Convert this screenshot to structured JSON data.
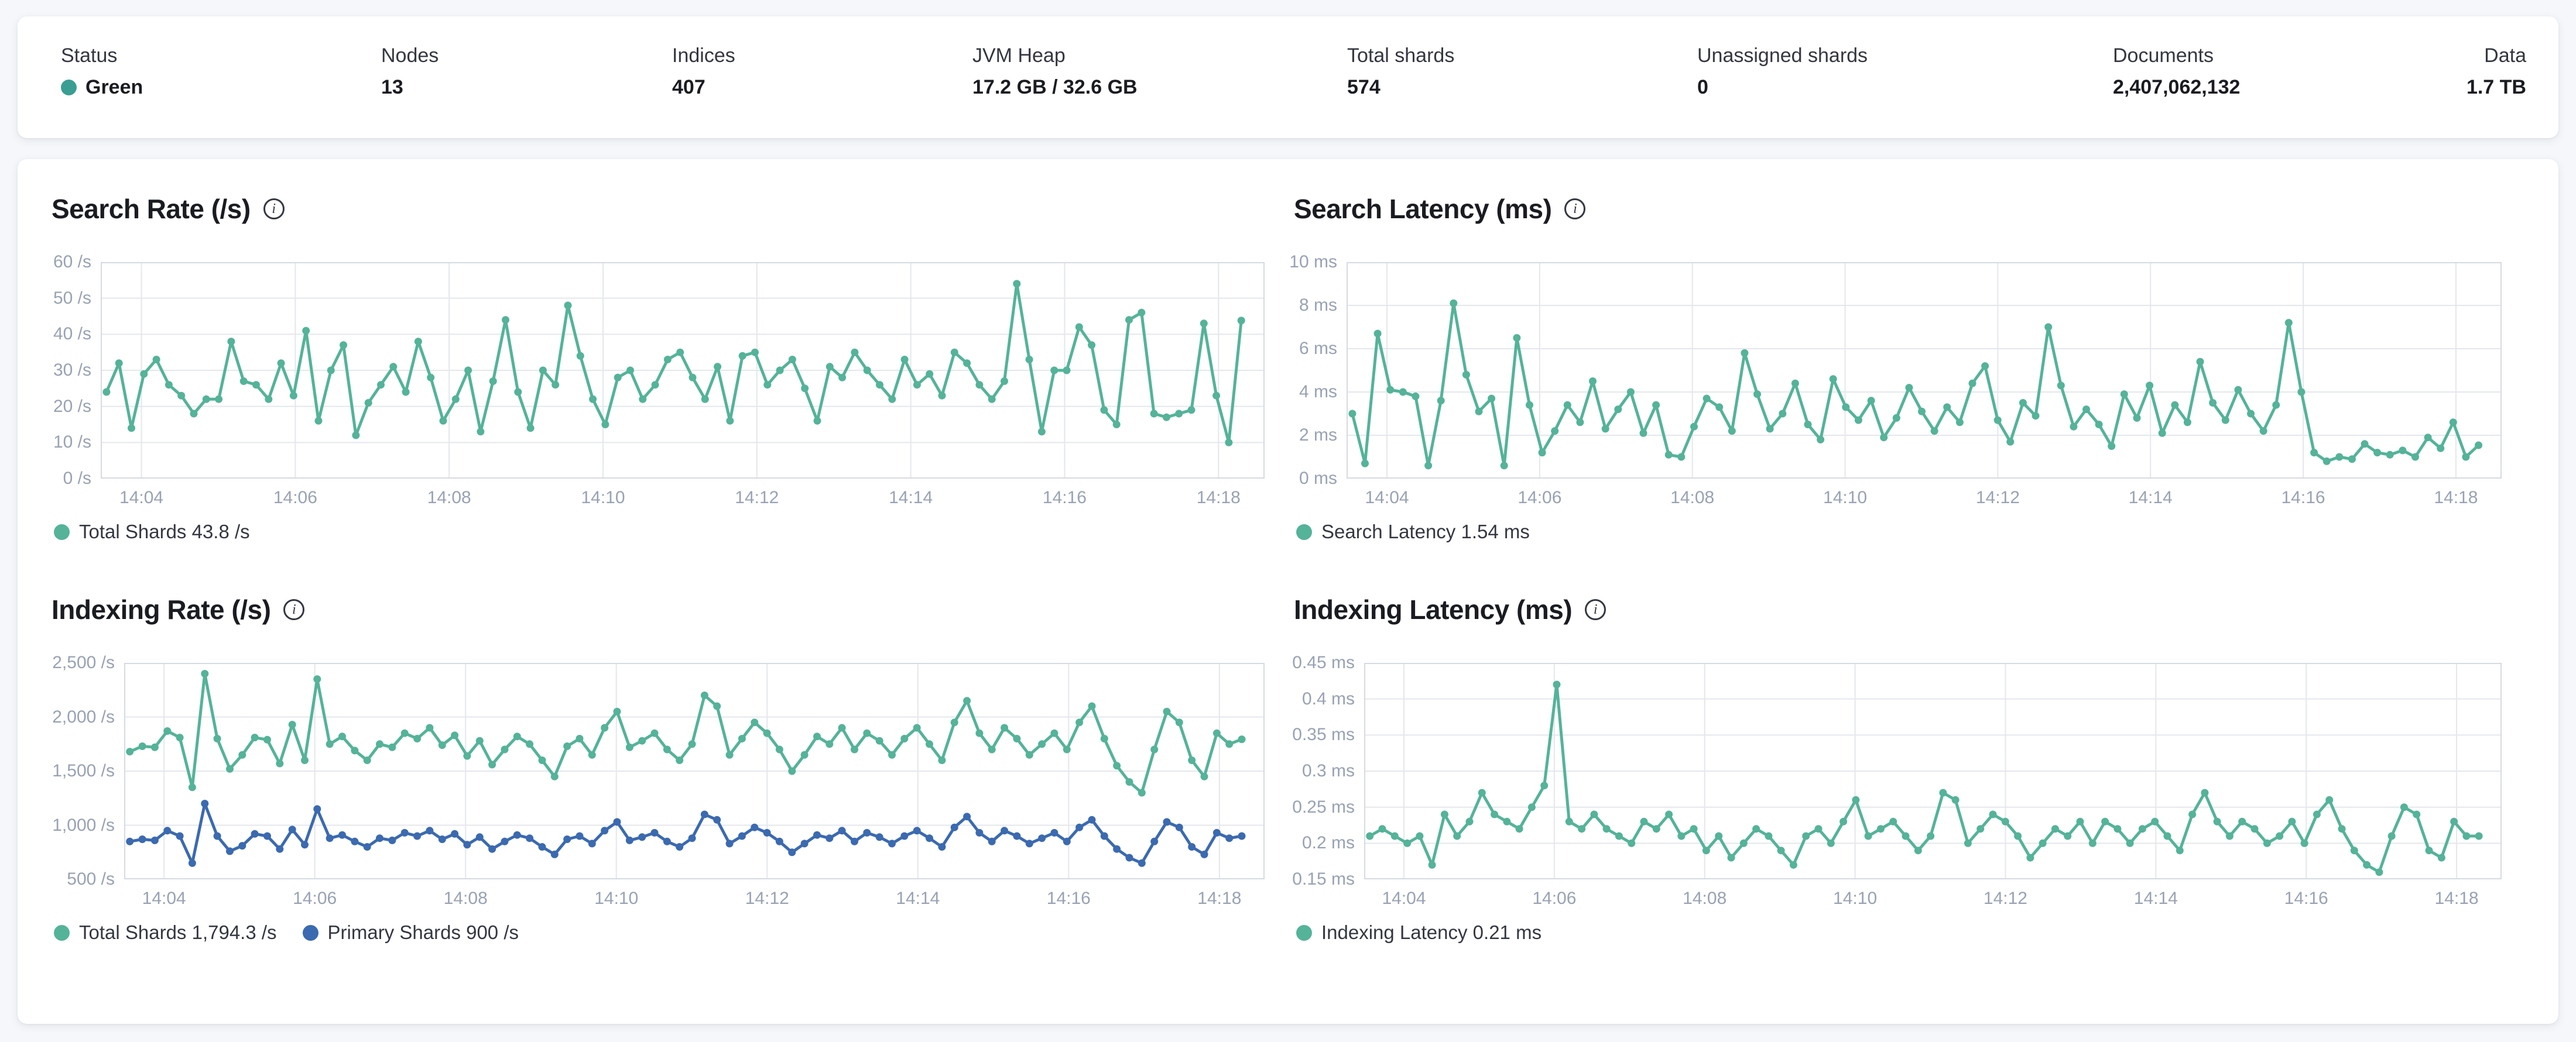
{
  "statusbar": {
    "items": [
      {
        "label": "Status",
        "value": "Green",
        "dot": true
      },
      {
        "label": "Nodes",
        "value": "13"
      },
      {
        "label": "Indices",
        "value": "407"
      },
      {
        "label": "JVM Heap",
        "value": "17.2 GB / 32.6 GB"
      },
      {
        "label": "Total shards",
        "value": "574"
      },
      {
        "label": "Unassigned shards",
        "value": "0"
      },
      {
        "label": "Documents",
        "value": "2,407,062,132"
      },
      {
        "label": "Data",
        "value": "1.7 TB"
      }
    ]
  },
  "colors": {
    "health_green": "#3a9e92",
    "teal": "#54b399",
    "blue": "#3b6ab0",
    "grid": "#e4e7ec",
    "plot_border": "#d6dae2",
    "axis_text": "#98a2b3"
  },
  "chart_data": [
    {
      "type": "line",
      "title": "Search Rate (/s)",
      "y_min": 0,
      "y_max": 60,
      "y_axis_labels": [
        "0 /s",
        "10 /s",
        "20 /s",
        "30 /s",
        "40 /s",
        "50 /s",
        "60 /s"
      ],
      "x_axis_labels": [
        "14:04",
        "14:06",
        "14:08",
        "14:10",
        "14:12",
        "14:14",
        "14:16",
        "14:18"
      ],
      "grid": true,
      "legend_position": "bottom",
      "series": [
        {
          "name": "Total Shards",
          "current": "43.8 /s",
          "color": "#54b399",
          "values": [
            24,
            32,
            14,
            29,
            33,
            26,
            23,
            18,
            22,
            22,
            38,
            27,
            26,
            22,
            32,
            23,
            41,
            16,
            30,
            37,
            12,
            21,
            26,
            31,
            24,
            38,
            28,
            16,
            22,
            30,
            13,
            27,
            44,
            24,
            14,
            30,
            26,
            48,
            34,
            22,
            15,
            28,
            30,
            22,
            26,
            33,
            35,
            28,
            22,
            31,
            16,
            34,
            35,
            26,
            30,
            33,
            25,
            16,
            31,
            28,
            35,
            30,
            26,
            22,
            33,
            26,
            29,
            23,
            35,
            32,
            26,
            22,
            27,
            54,
            33,
            13,
            30,
            30,
            42,
            37,
            19,
            15,
            44,
            46,
            18,
            17,
            18,
            19,
            43,
            23,
            10,
            43.8
          ]
        }
      ],
      "legend": [
        {
          "label": "Total Shards 43.8 /s",
          "color": "#54b399"
        }
      ]
    },
    {
      "type": "line",
      "title": "Search Latency (ms)",
      "y_min": 0,
      "y_max": 10,
      "y_axis_labels": [
        "0 ms",
        "2 ms",
        "4 ms",
        "6 ms",
        "8 ms",
        "10 ms"
      ],
      "x_axis_labels": [
        "14:04",
        "14:06",
        "14:08",
        "14:10",
        "14:12",
        "14:14",
        "14:16",
        "14:18"
      ],
      "grid": true,
      "legend_position": "bottom",
      "series": [
        {
          "name": "Search Latency",
          "current": "1.54 ms",
          "color": "#54b399",
          "values": [
            3.0,
            0.7,
            6.7,
            4.1,
            4.0,
            3.8,
            0.6,
            3.6,
            8.1,
            4.8,
            3.1,
            3.7,
            0.6,
            6.5,
            3.4,
            1.2,
            2.2,
            3.4,
            2.6,
            4.5,
            2.3,
            3.2,
            4.0,
            2.1,
            3.4,
            1.1,
            1.0,
            2.4,
            3.7,
            3.3,
            2.2,
            5.8,
            3.9,
            2.3,
            3.0,
            4.4,
            2.5,
            1.8,
            4.6,
            3.3,
            2.7,
            3.6,
            1.9,
            2.8,
            4.2,
            3.1,
            2.2,
            3.3,
            2.6,
            4.4,
            5.2,
            2.7,
            1.7,
            3.5,
            2.9,
            7.0,
            4.3,
            2.4,
            3.2,
            2.5,
            1.5,
            3.9,
            2.8,
            4.3,
            2.1,
            3.4,
            2.6,
            5.4,
            3.5,
            2.7,
            4.1,
            3.0,
            2.2,
            3.4,
            7.2,
            4.0,
            1.2,
            0.8,
            1.0,
            0.9,
            1.6,
            1.2,
            1.1,
            1.3,
            1.0,
            1.9,
            1.4,
            2.6,
            1.0,
            1.54
          ]
        }
      ],
      "legend": [
        {
          "label": "Search Latency 1.54 ms",
          "color": "#54b399"
        }
      ]
    },
    {
      "type": "line",
      "title": "Indexing Rate (/s)",
      "y_min": 500,
      "y_max": 2500,
      "y_axis_labels": [
        "500 /s",
        "1,000 /s",
        "1,500 /s",
        "2,000 /s",
        "2,500 /s"
      ],
      "x_axis_labels": [
        "14:04",
        "14:06",
        "14:08",
        "14:10",
        "14:12",
        "14:14",
        "14:16",
        "14:18"
      ],
      "grid": true,
      "legend_position": "bottom",
      "series": [
        {
          "name": "Total Shards",
          "current": "1,794.3 /s",
          "color": "#54b399",
          "values": [
            1680,
            1730,
            1720,
            1870,
            1810,
            1350,
            2400,
            1800,
            1520,
            1650,
            1810,
            1790,
            1570,
            1930,
            1600,
            2350,
            1750,
            1820,
            1690,
            1600,
            1750,
            1720,
            1850,
            1800,
            1900,
            1740,
            1830,
            1640,
            1780,
            1560,
            1700,
            1820,
            1750,
            1600,
            1450,
            1730,
            1800,
            1650,
            1900,
            2050,
            1720,
            1780,
            1850,
            1700,
            1600,
            1750,
            2200,
            2100,
            1650,
            1800,
            1950,
            1850,
            1700,
            1500,
            1650,
            1820,
            1750,
            1900,
            1700,
            1850,
            1780,
            1650,
            1800,
            1900,
            1750,
            1600,
            1950,
            2150,
            1850,
            1700,
            1900,
            1800,
            1650,
            1750,
            1850,
            1700,
            1950,
            2100,
            1800,
            1550,
            1400,
            1300,
            1700,
            2050,
            1950,
            1600,
            1450,
            1850,
            1750,
            1794.3
          ]
        },
        {
          "name": "Primary Shards",
          "current": "900 /s",
          "color": "#3b6ab0",
          "values": [
            850,
            870,
            860,
            950,
            900,
            650,
            1200,
            900,
            760,
            810,
            920,
            900,
            780,
            960,
            820,
            1150,
            880,
            910,
            850,
            800,
            880,
            860,
            930,
            900,
            950,
            870,
            920,
            820,
            890,
            780,
            850,
            910,
            880,
            800,
            730,
            870,
            900,
            830,
            950,
            1030,
            860,
            890,
            930,
            850,
            800,
            880,
            1100,
            1050,
            830,
            900,
            980,
            930,
            850,
            750,
            830,
            910,
            880,
            950,
            850,
            930,
            890,
            830,
            900,
            950,
            880,
            800,
            980,
            1080,
            930,
            850,
            950,
            900,
            830,
            880,
            930,
            850,
            980,
            1050,
            900,
            780,
            700,
            650,
            850,
            1030,
            980,
            800,
            730,
            930,
            880,
            900
          ]
        }
      ],
      "legend": [
        {
          "label": "Total Shards 1,794.3 /s",
          "color": "#54b399"
        },
        {
          "label": "Primary Shards 900 /s",
          "color": "#3b6ab0"
        }
      ]
    },
    {
      "type": "line",
      "title": "Indexing Latency (ms)",
      "y_min": 0.15,
      "y_max": 0.45,
      "y_axis_labels": [
        "0.15 ms",
        "0.2 ms",
        "0.25 ms",
        "0.3 ms",
        "0.35 ms",
        "0.4 ms",
        "0.45 ms"
      ],
      "x_axis_labels": [
        "14:04",
        "14:06",
        "14:08",
        "14:10",
        "14:12",
        "14:14",
        "14:16",
        "14:18"
      ],
      "grid": true,
      "legend_position": "bottom",
      "series": [
        {
          "name": "Indexing Latency",
          "current": "0.21 ms",
          "color": "#54b399",
          "values": [
            0.21,
            0.22,
            0.21,
            0.2,
            0.21,
            0.17,
            0.24,
            0.21,
            0.23,
            0.27,
            0.24,
            0.23,
            0.22,
            0.25,
            0.28,
            0.42,
            0.23,
            0.22,
            0.24,
            0.22,
            0.21,
            0.2,
            0.23,
            0.22,
            0.24,
            0.21,
            0.22,
            0.19,
            0.21,
            0.18,
            0.2,
            0.22,
            0.21,
            0.19,
            0.17,
            0.21,
            0.22,
            0.2,
            0.23,
            0.26,
            0.21,
            0.22,
            0.23,
            0.21,
            0.19,
            0.21,
            0.27,
            0.26,
            0.2,
            0.22,
            0.24,
            0.23,
            0.21,
            0.18,
            0.2,
            0.22,
            0.21,
            0.23,
            0.2,
            0.23,
            0.22,
            0.2,
            0.22,
            0.23,
            0.21,
            0.19,
            0.24,
            0.27,
            0.23,
            0.21,
            0.23,
            0.22,
            0.2,
            0.21,
            0.23,
            0.2,
            0.24,
            0.26,
            0.22,
            0.19,
            0.17,
            0.16,
            0.21,
            0.25,
            0.24,
            0.19,
            0.18,
            0.23,
            0.21,
            0.21
          ]
        }
      ],
      "legend": [
        {
          "label": "Indexing Latency 0.21 ms",
          "color": "#54b399"
        }
      ]
    }
  ]
}
